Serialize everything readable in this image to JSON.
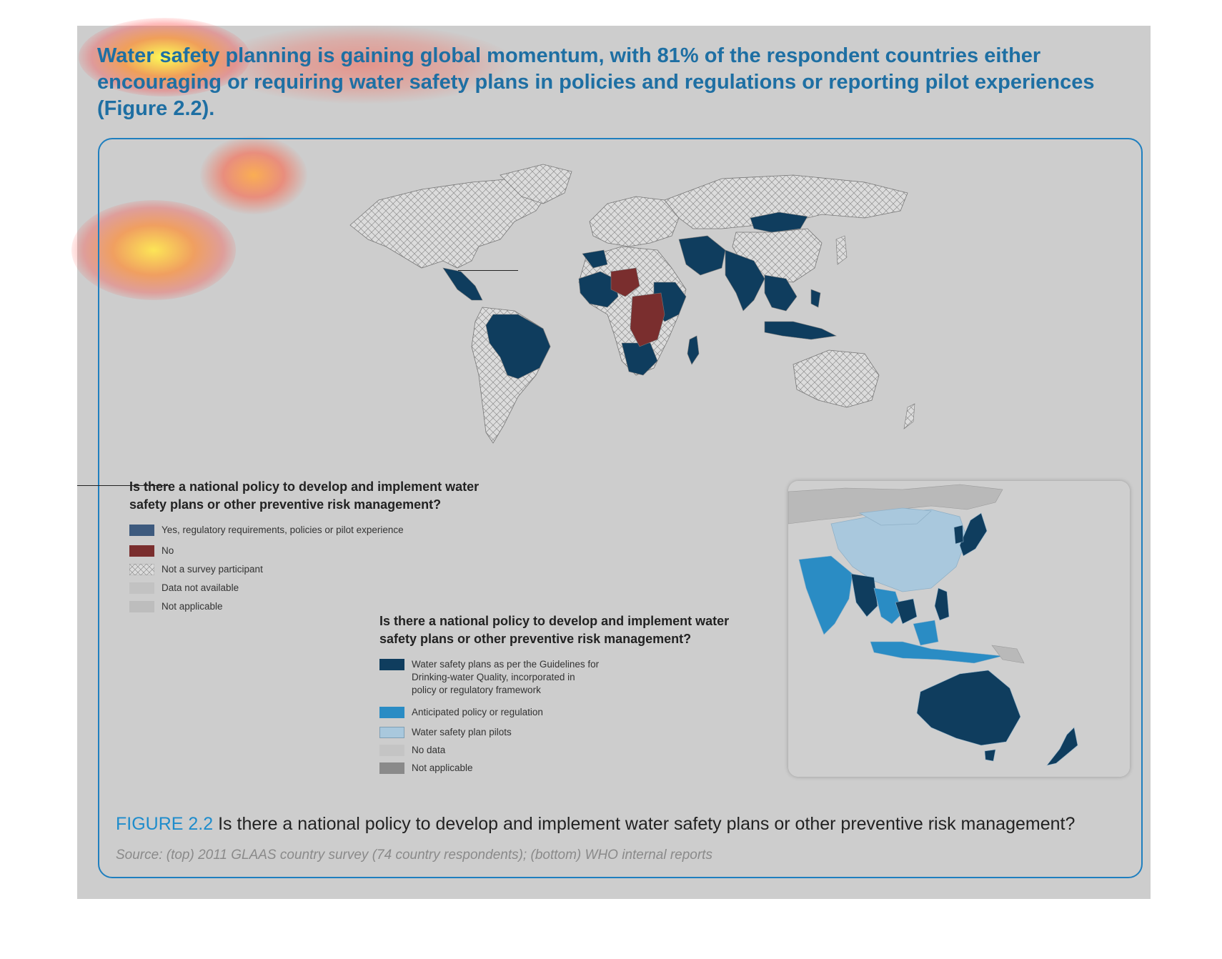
{
  "intro_text": "Water safety planning is gaining global momentum, with 81% of the respondent countries either encouraging or requiring water safety plans in policies and regulations or reporting pilot experiences (Figure 2.2).",
  "colors": {
    "panel_background": "#cdcdcd",
    "accent_blue": "#1e6fa3",
    "frame_blue": "#1f7fbf",
    "yes_navy": "#0f3d5e",
    "no_maroon": "#7a2e2e",
    "land_grey": "#d9d9d9",
    "anticipated_blue": "#2a8cc4",
    "pilot_light_blue": "#a9c8dd",
    "not_applicable_grey": "#8a8a8a"
  },
  "legend_top": {
    "title_line1": "Is there a national policy to develop and implement water",
    "title_line2": "safety plans or other preventive risk management?",
    "items": [
      {
        "label": "Yes, regulatory requirements, policies or pilot experience",
        "color": "#3d5a7e",
        "pattern": "solid"
      },
      {
        "label": "No",
        "color": "#7a2e2e",
        "pattern": "solid"
      },
      {
        "label": "Not a survey participant",
        "color": "#d8d8d8",
        "pattern": "crosshatch"
      },
      {
        "label": "Data not available",
        "color": "#c2c2c2",
        "pattern": "solid"
      },
      {
        "label": "Not applicable",
        "color": "#bdbdbd",
        "pattern": "solid"
      }
    ]
  },
  "legend_bottom": {
    "title_line1": "Is there a national policy to develop and implement water",
    "title_line2": "safety plans or other preventive risk management?",
    "items": [
      {
        "label_lines": [
          "Water safety plans as per the Guidelines for",
          "Drinking-water Quality, incorporated in",
          "policy or regulatory framework"
        ],
        "color": "#0f3d5e"
      },
      {
        "label_lines": [
          "Anticipated policy or regulation"
        ],
        "color": "#2a8cc4"
      },
      {
        "label_lines": [
          "Water safety plan pilots"
        ],
        "color": "#a9c8dd"
      },
      {
        "label_lines": [
          "No data"
        ],
        "color": "#c4c4c4"
      },
      {
        "label_lines": [
          "Not applicable"
        ],
        "color": "#8a8a8a"
      }
    ]
  },
  "caption": {
    "label": "FIGURE 2.2",
    "text": " Is there a national policy to develop and implement water safety plans or other preventive risk management?"
  },
  "source": "Source: (top) 2011 GLAAS country survey (74 country respondents); (bottom) WHO internal reports"
}
